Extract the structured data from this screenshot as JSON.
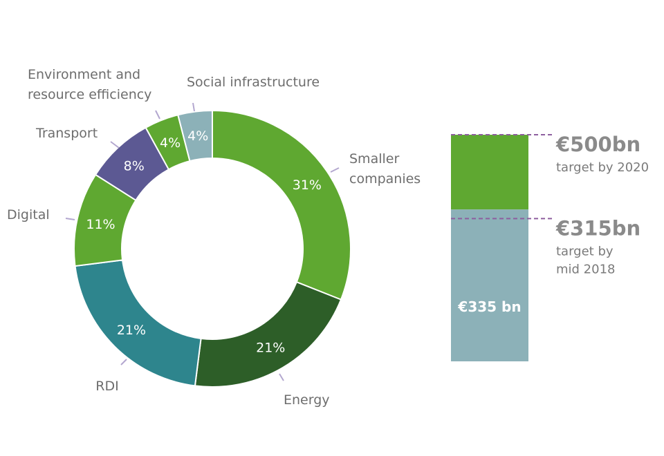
{
  "chart_data": [
    {
      "type": "donut",
      "slices": [
        {
          "label": "Smaller companies",
          "lines": [
            "Smaller",
            "companies"
          ],
          "value": 31,
          "text": "31%",
          "color": "#5fa831"
        },
        {
          "label": "Energy",
          "lines": [
            "Energy"
          ],
          "value": 21,
          "text": "21%",
          "color": "#2d5e28"
        },
        {
          "label": "RDI",
          "lines": [
            "RDI"
          ],
          "value": 21,
          "text": "21%",
          "color": "#2e858d"
        },
        {
          "label": "Digital",
          "lines": [
            "Digital"
          ],
          "value": 11,
          "text": "11%",
          "color": "#5fa831"
        },
        {
          "label": "Transport",
          "lines": [
            "Transport"
          ],
          "value": 8,
          "text": "8%",
          "color": "#5c5993"
        },
        {
          "label": "Environment and resource efficiency",
          "lines": [
            "Environment and",
            "resource efficiency"
          ],
          "value": 4,
          "text": "4%",
          "color": "#5fa831"
        },
        {
          "label": "Social infrastructure",
          "lines": [
            "Social infrastructure"
          ],
          "value": 4,
          "text": "4%",
          "color": "#8cb1b8"
        }
      ]
    },
    {
      "type": "bar",
      "stacked_bar": {
        "value": 335,
        "text": "€335 bn",
        "color": "#8cb1b8",
        "target_color": "#5fa831",
        "marker_color": "#8d5e9e",
        "ylim": [
          0,
          500
        ],
        "targets": [
          {
            "value": 500,
            "big": "€500bn",
            "sub": [
              "target by 2020"
            ]
          },
          {
            "value": 315,
            "big": "€315bn",
            "sub": [
              "target by",
              "mid 2018"
            ]
          }
        ]
      }
    }
  ]
}
